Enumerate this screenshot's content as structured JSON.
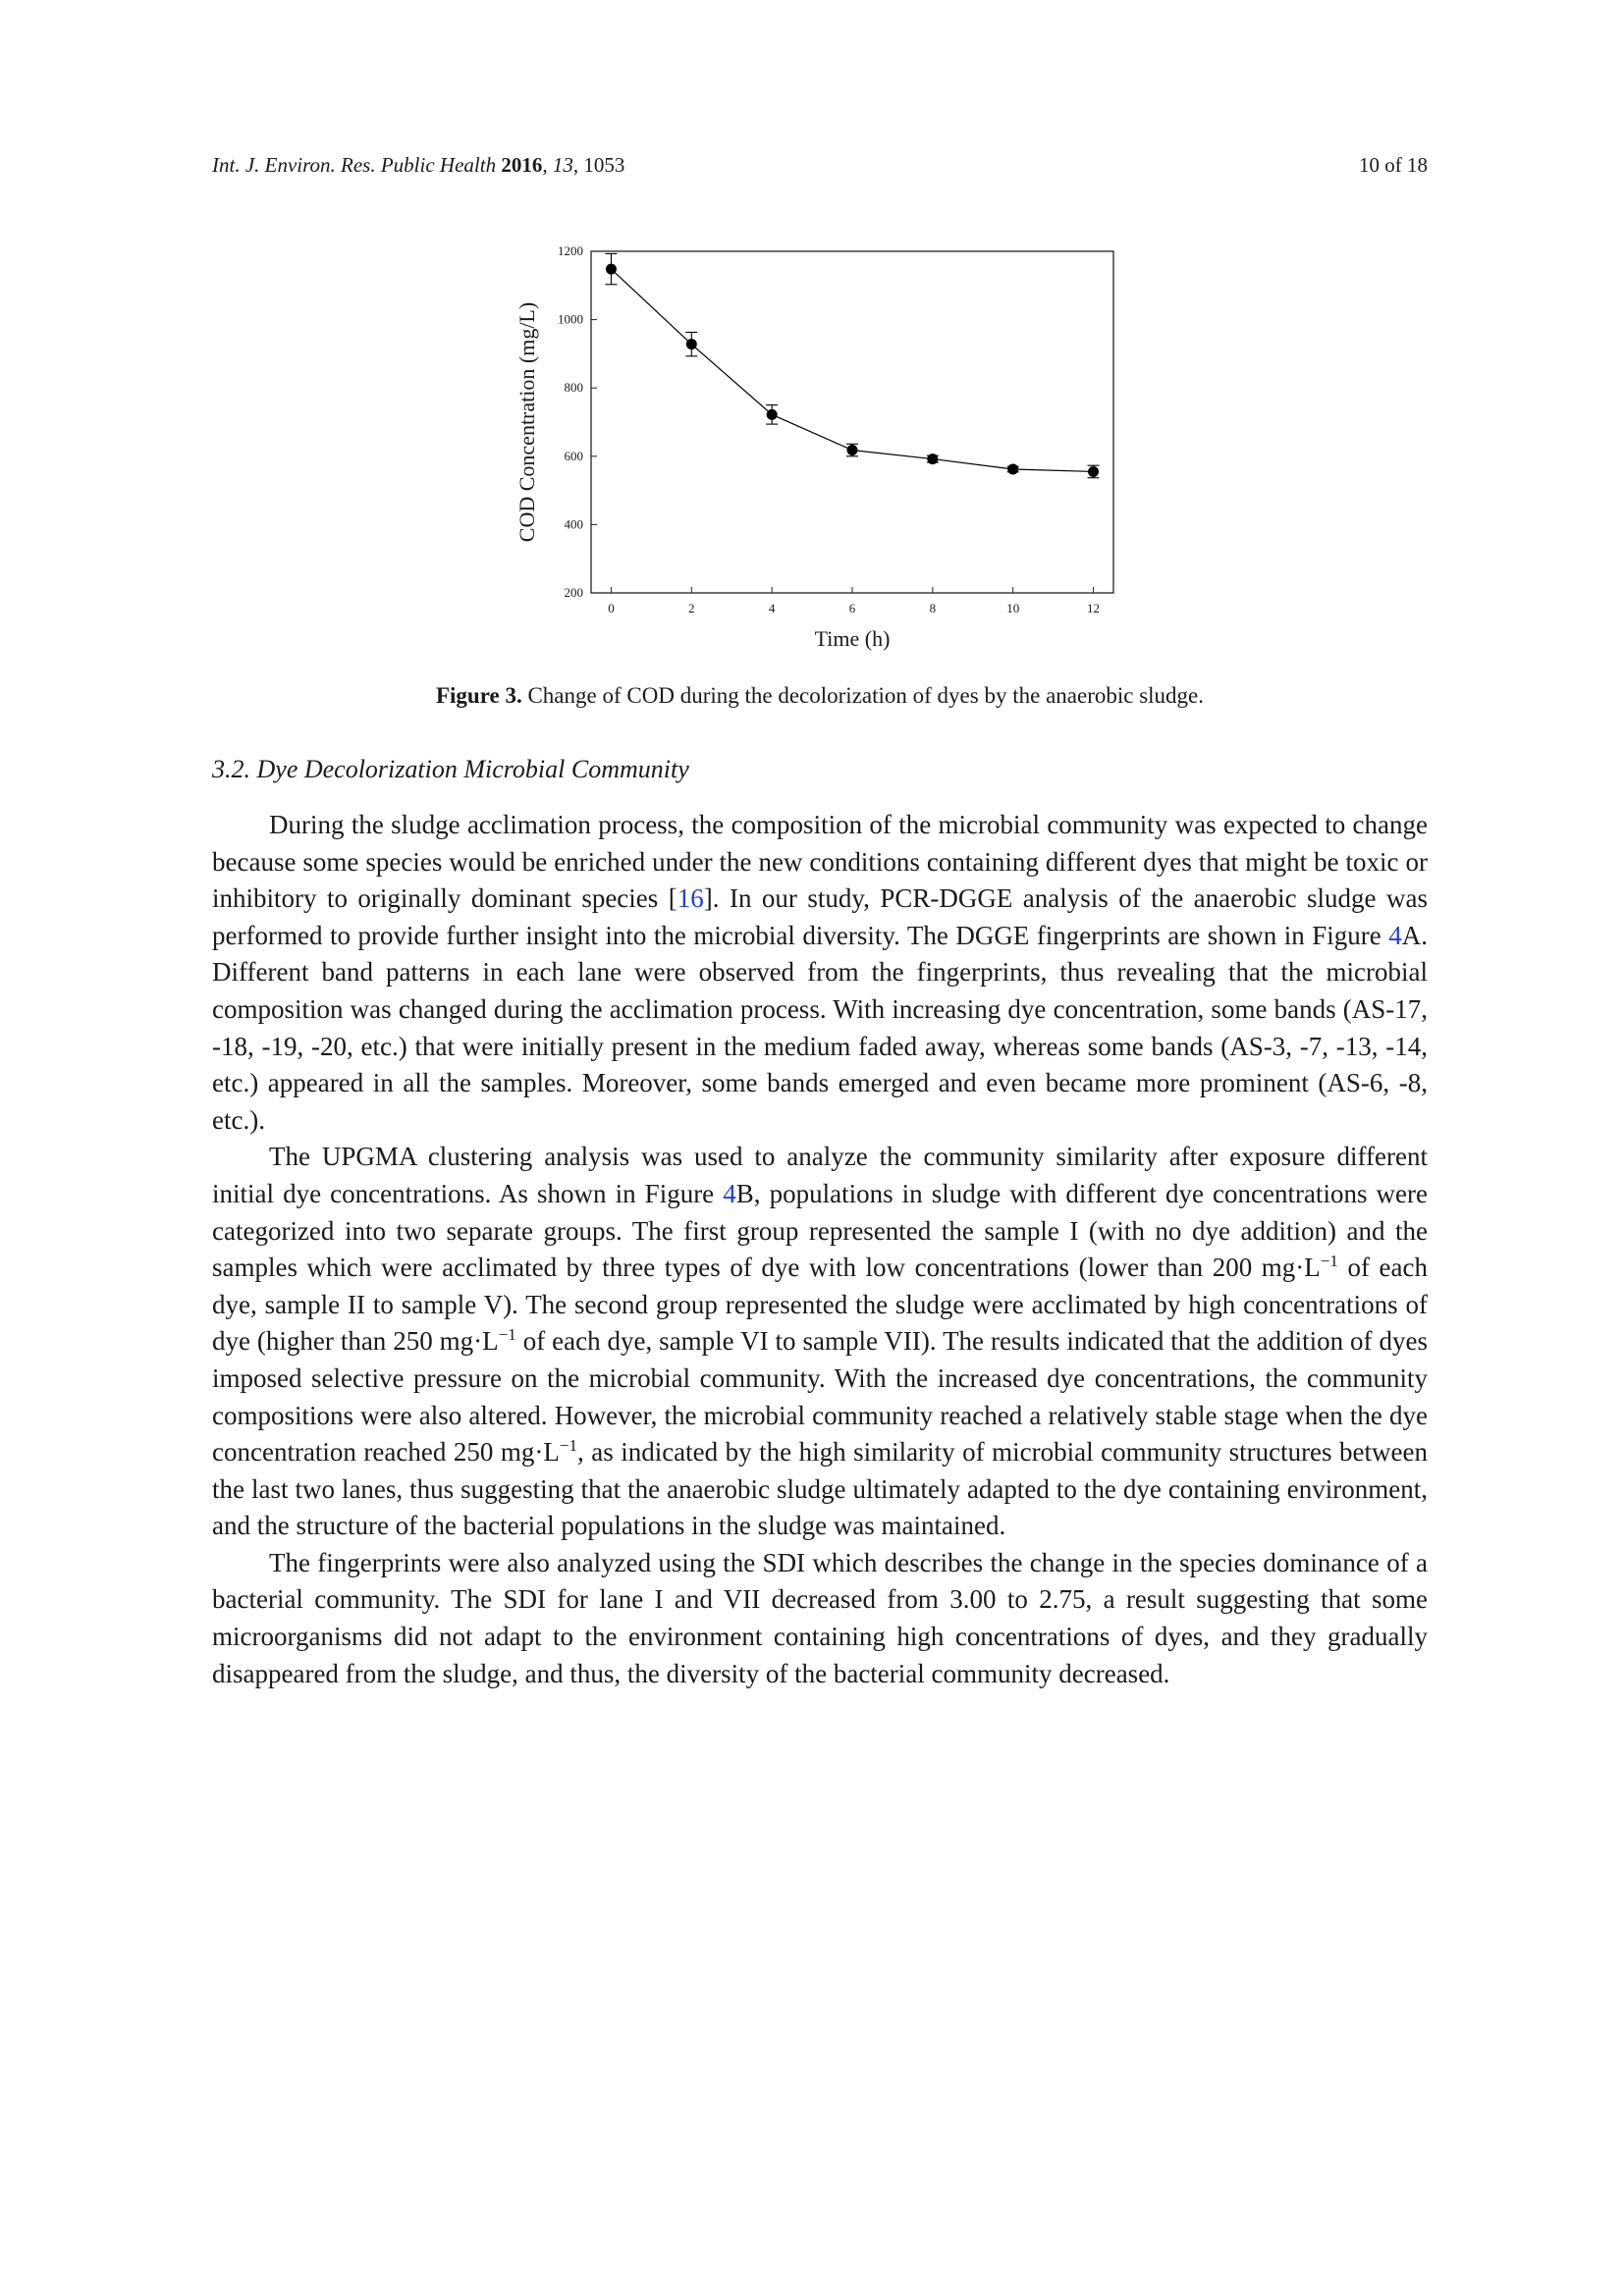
{
  "running_head": {
    "journal": "Int. J. Environ. Res. Public Health",
    "year": "2016",
    "volume": "13",
    "article": "1053",
    "page": "10 of 18"
  },
  "figure": {
    "caption_label": "Figure 3.",
    "caption_text": "Change of COD during the decolorization of dyes by the anaerobic sludge."
  },
  "chart_data": {
    "type": "line",
    "title": "",
    "xlabel": "Time (h)",
    "ylabel": "COD Concentration (mg/L)",
    "xlim": [
      -0.5,
      12.5
    ],
    "ylim": [
      200,
      1200
    ],
    "x_ticks": [
      0,
      2,
      4,
      6,
      8,
      10,
      12
    ],
    "y_ticks": [
      200,
      400,
      600,
      800,
      1000,
      1200
    ],
    "grid": false,
    "series": [
      {
        "x": [
          0,
          2,
          4,
          6,
          8,
          10,
          12
        ],
        "y": [
          1148,
          928,
          722,
          618,
          592,
          562,
          555
        ],
        "error": [
          45,
          35,
          28,
          18,
          10,
          8,
          18
        ],
        "marker": "circle",
        "color": "#000000"
      }
    ]
  },
  "section": {
    "heading": "3.2. Dye Decolorization Microbial Community"
  },
  "paragraphs": {
    "p1_a": "During the sludge acclimation process, the composition of the microbial community was expected to change because some species would be enriched under the new conditions containing different dyes that might be toxic or inhibitory to originally dominant species [",
    "p1_ref": "16",
    "p1_b": "]. In our study, PCR-DGGE analysis of the anaerobic sludge was performed to provide further insight into the microbial diversity. The DGGE fingerprints are shown in Figure ",
    "p1_fig": "4",
    "p1_c": "A. Different band patterns in each lane were observed from the fingerprints, thus revealing that the microbial composition was changed during the acclimation process. With increasing dye concentration, some bands (AS-17, -18, -19, -20, etc.) that were initially present in the medium faded away, whereas some bands (AS-3, -7, -13, -14, etc.) appeared in all the samples. Moreover, some bands emerged and even became more prominent (AS-6, -8, etc.).",
    "p2_a": "The UPGMA clustering analysis was used to analyze the community similarity after exposure different initial dye concentrations. As shown in Figure ",
    "p2_fig": "4",
    "p2_b": "B, populations in sludge with different dye concentrations were categorized into two separate groups. The first group represented the sample I (with no dye addition) and the samples which were acclimated by three types of dye with low concentrations (lower than 200 mg·L",
    "p2_sup1": "−1",
    "p2_c": " of each dye, sample II to sample V). The second group represented the sludge were acclimated by high concentrations of dye (higher than 250 mg·L",
    "p2_sup2": "−1",
    "p2_d": " of each dye, sample VI to sample VII). The results indicated that the addition of dyes imposed selective pressure on the microbial community. With the increased dye concentrations, the community compositions were also altered. However, the microbial community reached a relatively stable stage when the dye concentration reached 250 mg·L",
    "p2_sup3": "−1",
    "p2_e": ", as indicated by the high similarity of microbial community structures between the last two lanes, thus suggesting that the anaerobic sludge ultimately adapted to the dye containing environment, and the structure of the bacterial populations in the sludge was maintained.",
    "p3": "The fingerprints were also analyzed using the SDI which describes the change in the species dominance of a bacterial community. The SDI for lane I and VII decreased from 3.00 to 2.75, a result suggesting that some microorganisms did not adapt to the environment containing high concentrations of dyes, and they gradually disappeared from the sludge, and thus, the diversity of the bacterial community decreased."
  }
}
